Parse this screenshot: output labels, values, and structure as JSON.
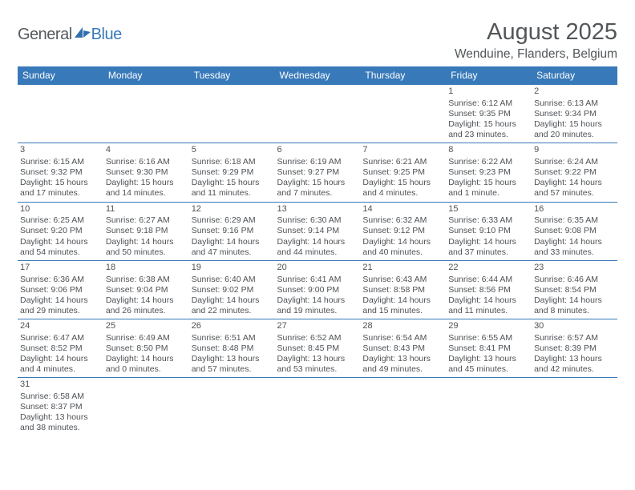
{
  "logo": {
    "word1": "General",
    "word2": "Blue",
    "iconColor": "#2f6fae"
  },
  "header": {
    "monthTitle": "August 2025",
    "location": "Wenduine, Flanders, Belgium"
  },
  "style": {
    "headerBg": "#3879b9",
    "headerText": "#ffffff",
    "cellBorder": "#3879b9",
    "textColor": "#4e5256",
    "titleColor": "#525659",
    "bodyFontSizePt": 8,
    "titleFontSizePt": 22,
    "locationFontSizePt": 12,
    "weekdayFontSizePt": 9
  },
  "weekdays": [
    "Sunday",
    "Monday",
    "Tuesday",
    "Wednesday",
    "Thursday",
    "Friday",
    "Saturday"
  ],
  "weeks": [
    [
      null,
      null,
      null,
      null,
      null,
      {
        "n": "1",
        "sr": "Sunrise: 6:12 AM",
        "ss": "Sunset: 9:35 PM",
        "d1": "Daylight: 15 hours",
        "d2": "and 23 minutes."
      },
      {
        "n": "2",
        "sr": "Sunrise: 6:13 AM",
        "ss": "Sunset: 9:34 PM",
        "d1": "Daylight: 15 hours",
        "d2": "and 20 minutes."
      }
    ],
    [
      {
        "n": "3",
        "sr": "Sunrise: 6:15 AM",
        "ss": "Sunset: 9:32 PM",
        "d1": "Daylight: 15 hours",
        "d2": "and 17 minutes."
      },
      {
        "n": "4",
        "sr": "Sunrise: 6:16 AM",
        "ss": "Sunset: 9:30 PM",
        "d1": "Daylight: 15 hours",
        "d2": "and 14 minutes."
      },
      {
        "n": "5",
        "sr": "Sunrise: 6:18 AM",
        "ss": "Sunset: 9:29 PM",
        "d1": "Daylight: 15 hours",
        "d2": "and 11 minutes."
      },
      {
        "n": "6",
        "sr": "Sunrise: 6:19 AM",
        "ss": "Sunset: 9:27 PM",
        "d1": "Daylight: 15 hours",
        "d2": "and 7 minutes."
      },
      {
        "n": "7",
        "sr": "Sunrise: 6:21 AM",
        "ss": "Sunset: 9:25 PM",
        "d1": "Daylight: 15 hours",
        "d2": "and 4 minutes."
      },
      {
        "n": "8",
        "sr": "Sunrise: 6:22 AM",
        "ss": "Sunset: 9:23 PM",
        "d1": "Daylight: 15 hours",
        "d2": "and 1 minute."
      },
      {
        "n": "9",
        "sr": "Sunrise: 6:24 AM",
        "ss": "Sunset: 9:22 PM",
        "d1": "Daylight: 14 hours",
        "d2": "and 57 minutes."
      }
    ],
    [
      {
        "n": "10",
        "sr": "Sunrise: 6:25 AM",
        "ss": "Sunset: 9:20 PM",
        "d1": "Daylight: 14 hours",
        "d2": "and 54 minutes."
      },
      {
        "n": "11",
        "sr": "Sunrise: 6:27 AM",
        "ss": "Sunset: 9:18 PM",
        "d1": "Daylight: 14 hours",
        "d2": "and 50 minutes."
      },
      {
        "n": "12",
        "sr": "Sunrise: 6:29 AM",
        "ss": "Sunset: 9:16 PM",
        "d1": "Daylight: 14 hours",
        "d2": "and 47 minutes."
      },
      {
        "n": "13",
        "sr": "Sunrise: 6:30 AM",
        "ss": "Sunset: 9:14 PM",
        "d1": "Daylight: 14 hours",
        "d2": "and 44 minutes."
      },
      {
        "n": "14",
        "sr": "Sunrise: 6:32 AM",
        "ss": "Sunset: 9:12 PM",
        "d1": "Daylight: 14 hours",
        "d2": "and 40 minutes."
      },
      {
        "n": "15",
        "sr": "Sunrise: 6:33 AM",
        "ss": "Sunset: 9:10 PM",
        "d1": "Daylight: 14 hours",
        "d2": "and 37 minutes."
      },
      {
        "n": "16",
        "sr": "Sunrise: 6:35 AM",
        "ss": "Sunset: 9:08 PM",
        "d1": "Daylight: 14 hours",
        "d2": "and 33 minutes."
      }
    ],
    [
      {
        "n": "17",
        "sr": "Sunrise: 6:36 AM",
        "ss": "Sunset: 9:06 PM",
        "d1": "Daylight: 14 hours",
        "d2": "and 29 minutes."
      },
      {
        "n": "18",
        "sr": "Sunrise: 6:38 AM",
        "ss": "Sunset: 9:04 PM",
        "d1": "Daylight: 14 hours",
        "d2": "and 26 minutes."
      },
      {
        "n": "19",
        "sr": "Sunrise: 6:40 AM",
        "ss": "Sunset: 9:02 PM",
        "d1": "Daylight: 14 hours",
        "d2": "and 22 minutes."
      },
      {
        "n": "20",
        "sr": "Sunrise: 6:41 AM",
        "ss": "Sunset: 9:00 PM",
        "d1": "Daylight: 14 hours",
        "d2": "and 19 minutes."
      },
      {
        "n": "21",
        "sr": "Sunrise: 6:43 AM",
        "ss": "Sunset: 8:58 PM",
        "d1": "Daylight: 14 hours",
        "d2": "and 15 minutes."
      },
      {
        "n": "22",
        "sr": "Sunrise: 6:44 AM",
        "ss": "Sunset: 8:56 PM",
        "d1": "Daylight: 14 hours",
        "d2": "and 11 minutes."
      },
      {
        "n": "23",
        "sr": "Sunrise: 6:46 AM",
        "ss": "Sunset: 8:54 PM",
        "d1": "Daylight: 14 hours",
        "d2": "and 8 minutes."
      }
    ],
    [
      {
        "n": "24",
        "sr": "Sunrise: 6:47 AM",
        "ss": "Sunset: 8:52 PM",
        "d1": "Daylight: 14 hours",
        "d2": "and 4 minutes."
      },
      {
        "n": "25",
        "sr": "Sunrise: 6:49 AM",
        "ss": "Sunset: 8:50 PM",
        "d1": "Daylight: 14 hours",
        "d2": "and 0 minutes."
      },
      {
        "n": "26",
        "sr": "Sunrise: 6:51 AM",
        "ss": "Sunset: 8:48 PM",
        "d1": "Daylight: 13 hours",
        "d2": "and 57 minutes."
      },
      {
        "n": "27",
        "sr": "Sunrise: 6:52 AM",
        "ss": "Sunset: 8:45 PM",
        "d1": "Daylight: 13 hours",
        "d2": "and 53 minutes."
      },
      {
        "n": "28",
        "sr": "Sunrise: 6:54 AM",
        "ss": "Sunset: 8:43 PM",
        "d1": "Daylight: 13 hours",
        "d2": "and 49 minutes."
      },
      {
        "n": "29",
        "sr": "Sunrise: 6:55 AM",
        "ss": "Sunset: 8:41 PM",
        "d1": "Daylight: 13 hours",
        "d2": "and 45 minutes."
      },
      {
        "n": "30",
        "sr": "Sunrise: 6:57 AM",
        "ss": "Sunset: 8:39 PM",
        "d1": "Daylight: 13 hours",
        "d2": "and 42 minutes."
      }
    ],
    [
      {
        "n": "31",
        "sr": "Sunrise: 6:58 AM",
        "ss": "Sunset: 8:37 PM",
        "d1": "Daylight: 13 hours",
        "d2": "and 38 minutes."
      },
      null,
      null,
      null,
      null,
      null,
      null
    ]
  ]
}
